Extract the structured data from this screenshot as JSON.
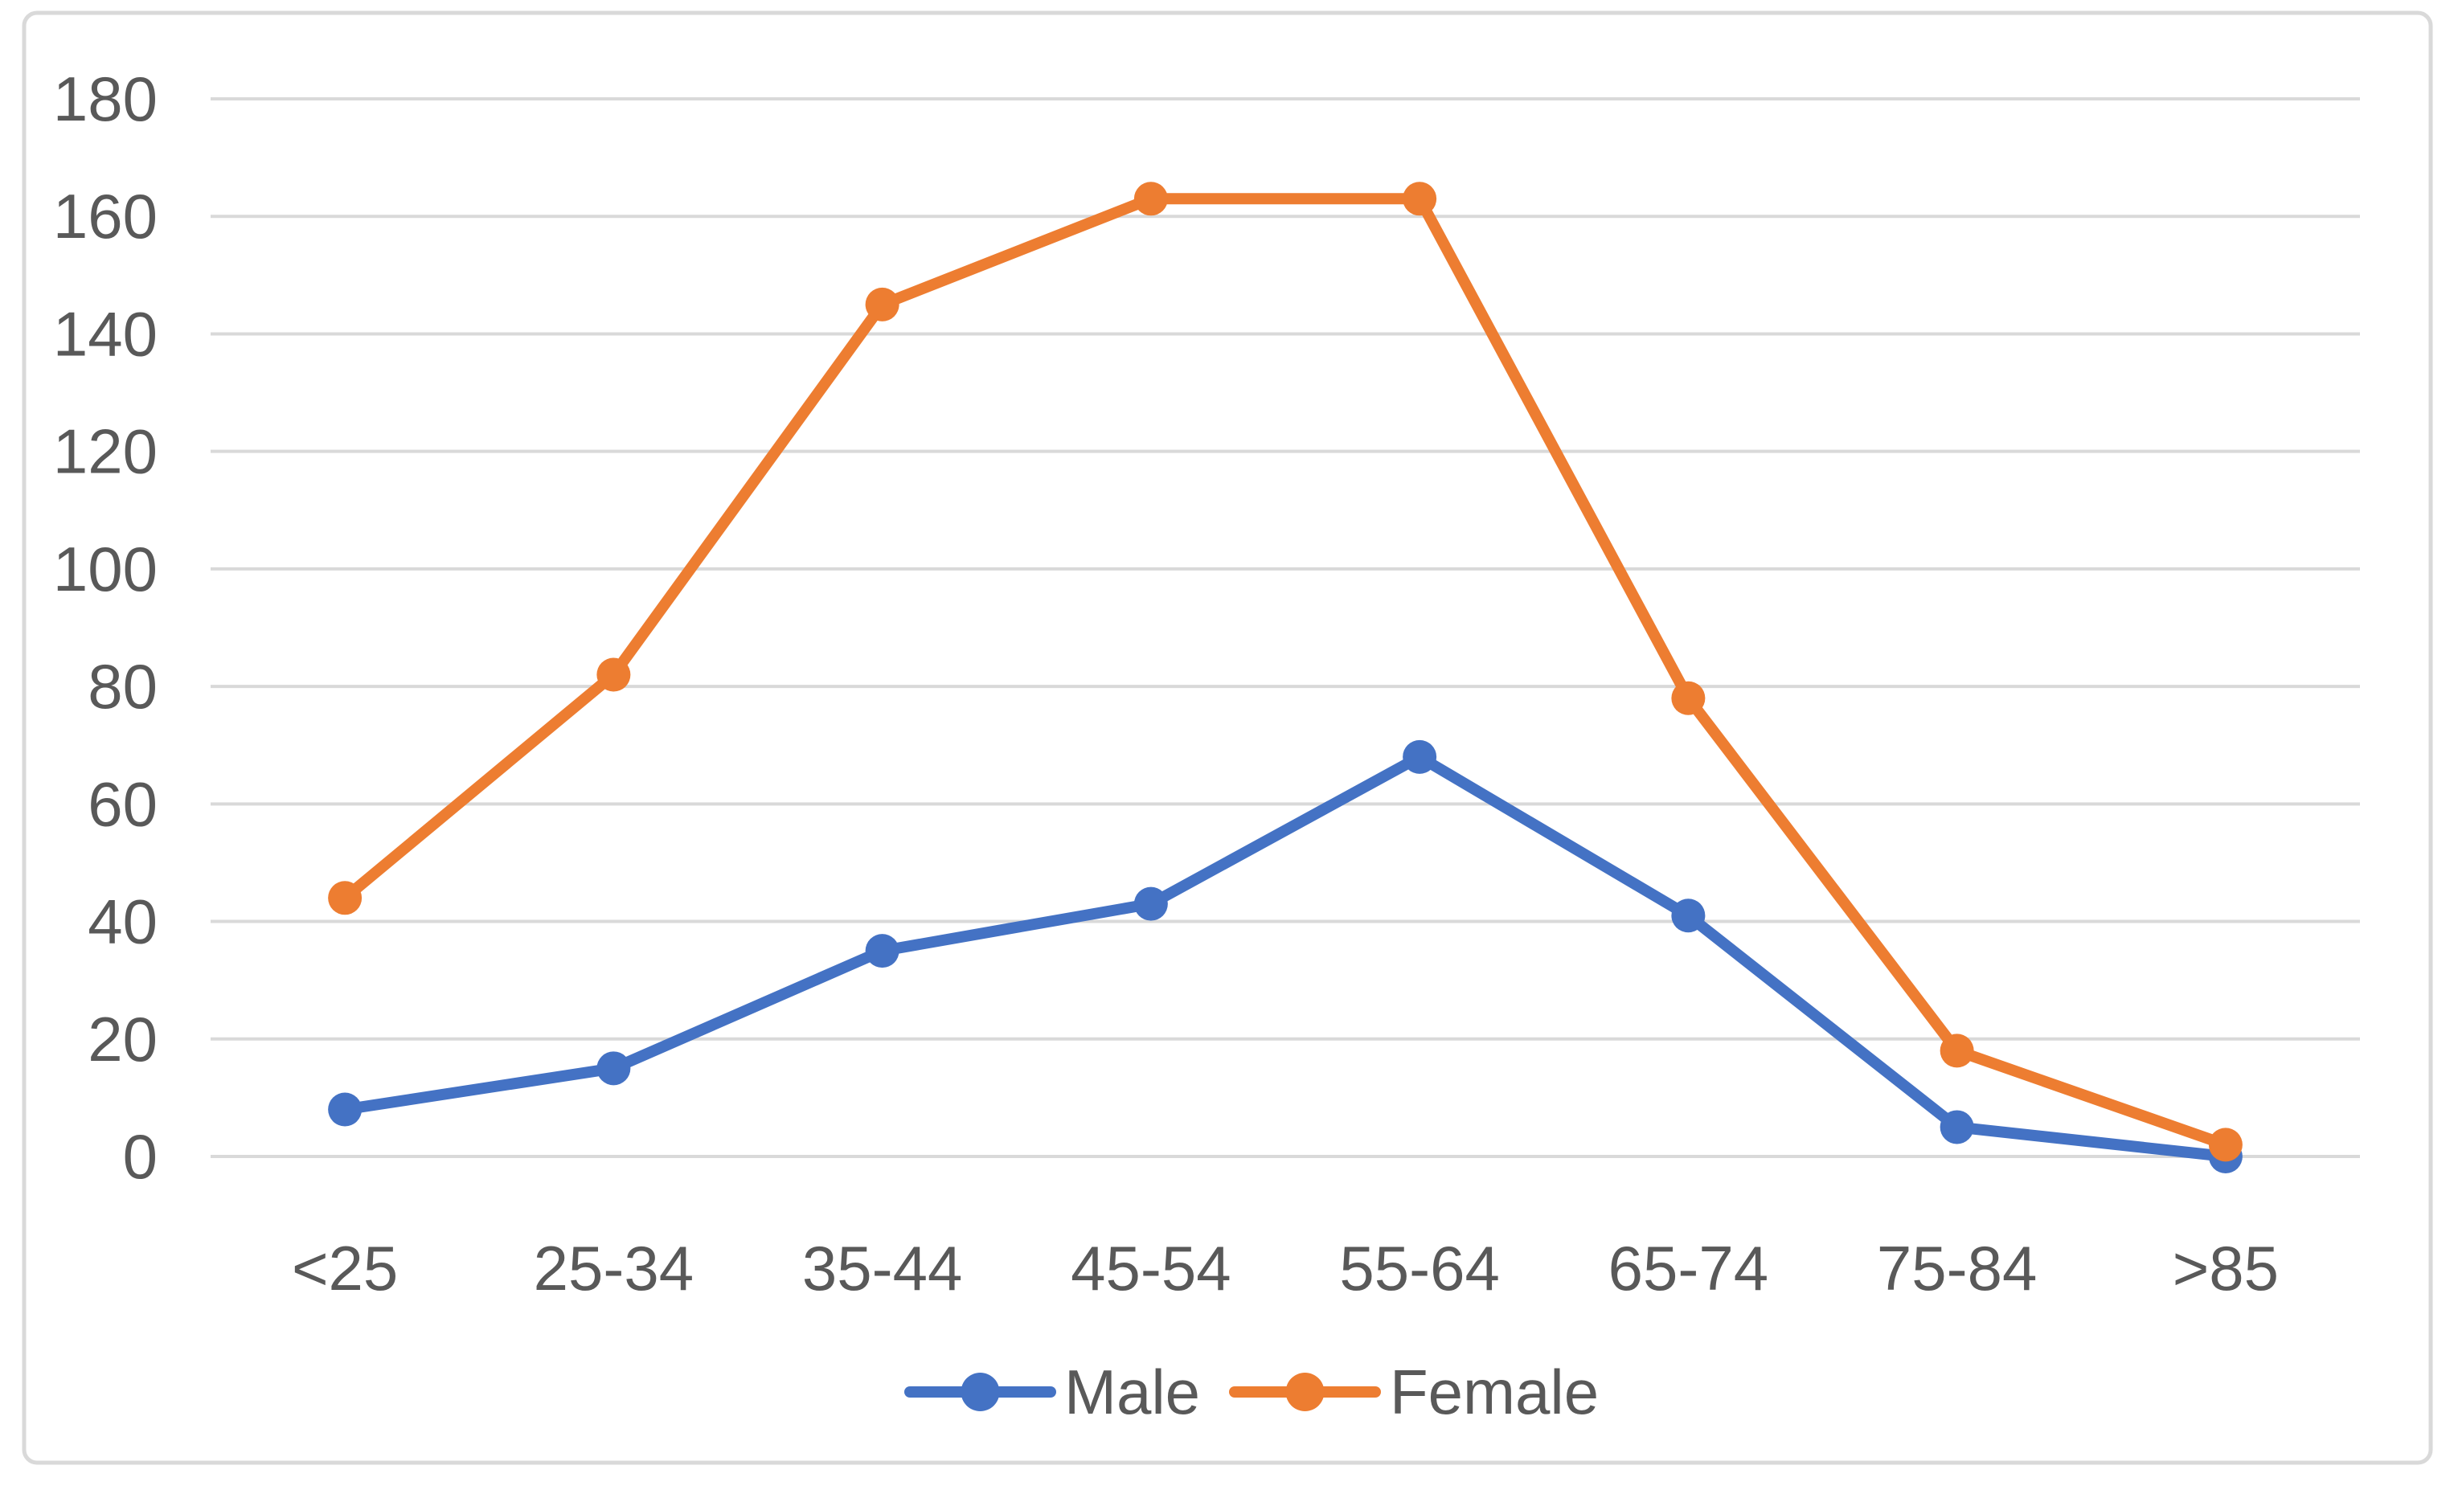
{
  "chart_data": {
    "type": "line",
    "title": "",
    "xlabel": "",
    "ylabel": "",
    "categories": [
      "<25",
      "25-34",
      "35-44",
      "45-54",
      "55-64",
      "65-74",
      "75-84",
      ">85"
    ],
    "series": [
      {
        "name": "Male",
        "color": "#4472C4",
        "values": [
          8,
          15,
          35,
          43,
          68,
          41,
          5,
          0
        ]
      },
      {
        "name": "Female",
        "color": "#ED7D31",
        "values": [
          44,
          82,
          145,
          163,
          163,
          78,
          18,
          2
        ]
      }
    ],
    "ylim": [
      0,
      180
    ],
    "ytick_step": 20,
    "ytick_labels": [
      "0",
      "20",
      "40",
      "60",
      "80",
      "100",
      "120",
      "140",
      "160",
      "180"
    ],
    "grid": true,
    "legend_position": "bottom",
    "colors": {
      "gridline": "#D9D9D9",
      "axis_text": "#595959",
      "frame_border": "#D9D9D9",
      "background": "#FFFFFF"
    }
  }
}
